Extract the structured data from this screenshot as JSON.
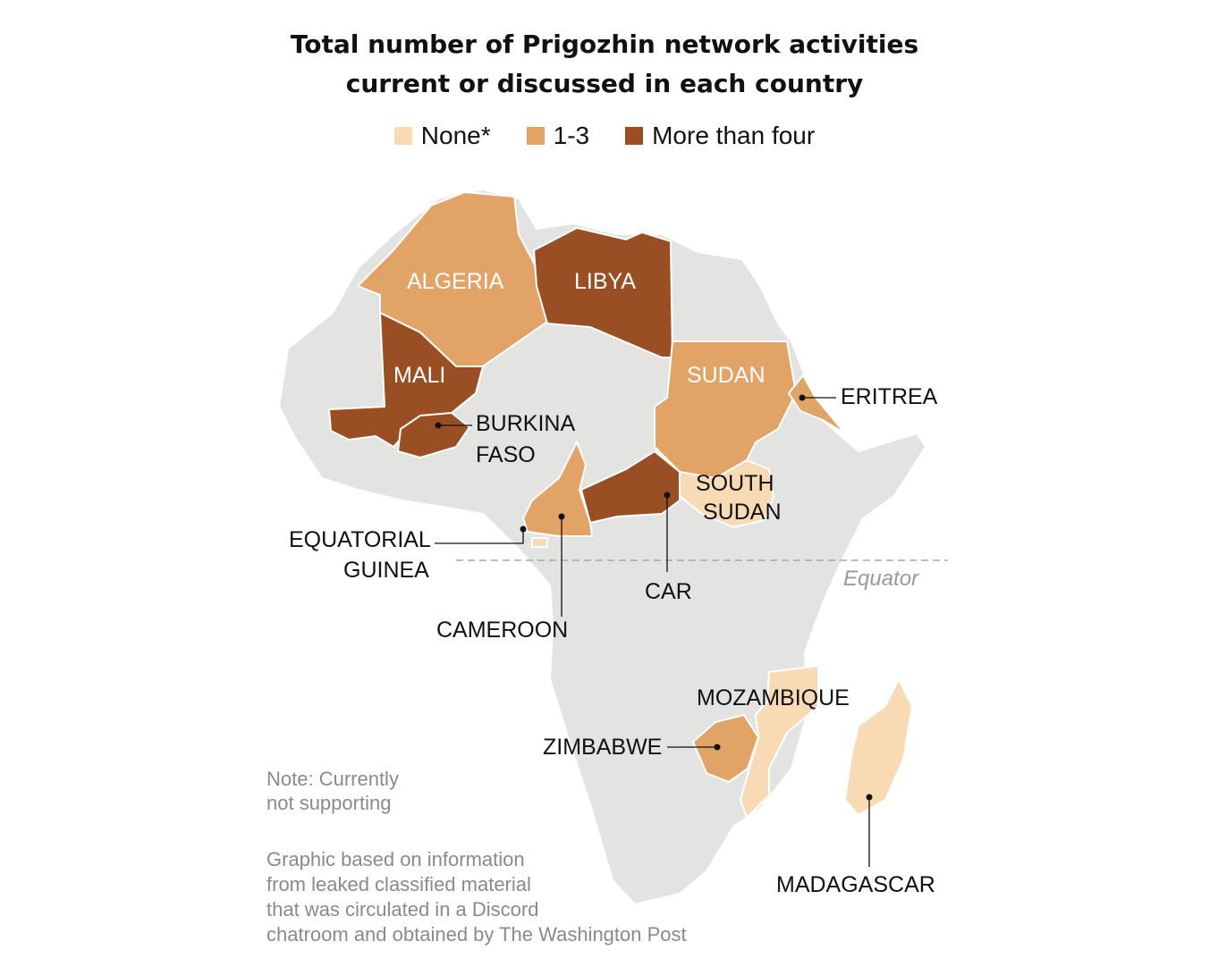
{
  "title_line1": "Total number of Prigozhin network activities",
  "title_line2": "current or discussed in each country",
  "legend": [
    {
      "label": "None*",
      "color": "#f8dab4"
    },
    {
      "label": "1-3",
      "color": "#e2a366"
    },
    {
      "label": "More than four",
      "color": "#994f23"
    }
  ],
  "colors": {
    "land": "#e3e3e1",
    "border": "#ffffff",
    "none": "#f8dab4",
    "mid": "#e2a366",
    "high": "#994f23",
    "equator_line": "#a8a8a8"
  },
  "countries": {
    "algeria": {
      "label": "ALGERIA",
      "category": "1-3"
    },
    "libya": {
      "label": "LIBYA",
      "category": "More than four"
    },
    "mali": {
      "label": "MALI",
      "category": "More than four"
    },
    "sudan": {
      "label": "SUDAN",
      "category": "1-3"
    },
    "eritrea": {
      "label": "ERITREA",
      "category": "1-3"
    },
    "burkina_faso": {
      "label_line1": "BURKINA",
      "label_line2": "FASO",
      "category": "More than four"
    },
    "south_sudan": {
      "label_line1": "SOUTH",
      "label_line2": "SUDAN",
      "category": "None*"
    },
    "equatorial_guinea": {
      "label_line1": "EQUATORIAL",
      "label_line2": "GUINEA",
      "category": "None*"
    },
    "cameroon": {
      "label": "CAMEROON",
      "category": "1-3"
    },
    "car": {
      "label": "CAR",
      "category": "More than four"
    },
    "mozambique": {
      "label": "MOZAMBIQUE",
      "category": "None*"
    },
    "zimbabwe": {
      "label": "ZIMBABWE",
      "category": "1-3"
    },
    "madagascar": {
      "label": "MADAGASCAR",
      "category": "None*"
    }
  },
  "equator_label": "Equator",
  "note_line1": "Note: Currently",
  "note_line2": "not supporting",
  "source": [
    "Graphic based on information",
    "from leaked classified material",
    "that was circulated in a Discord",
    "chatroom and obtained by The Washington Post"
  ]
}
